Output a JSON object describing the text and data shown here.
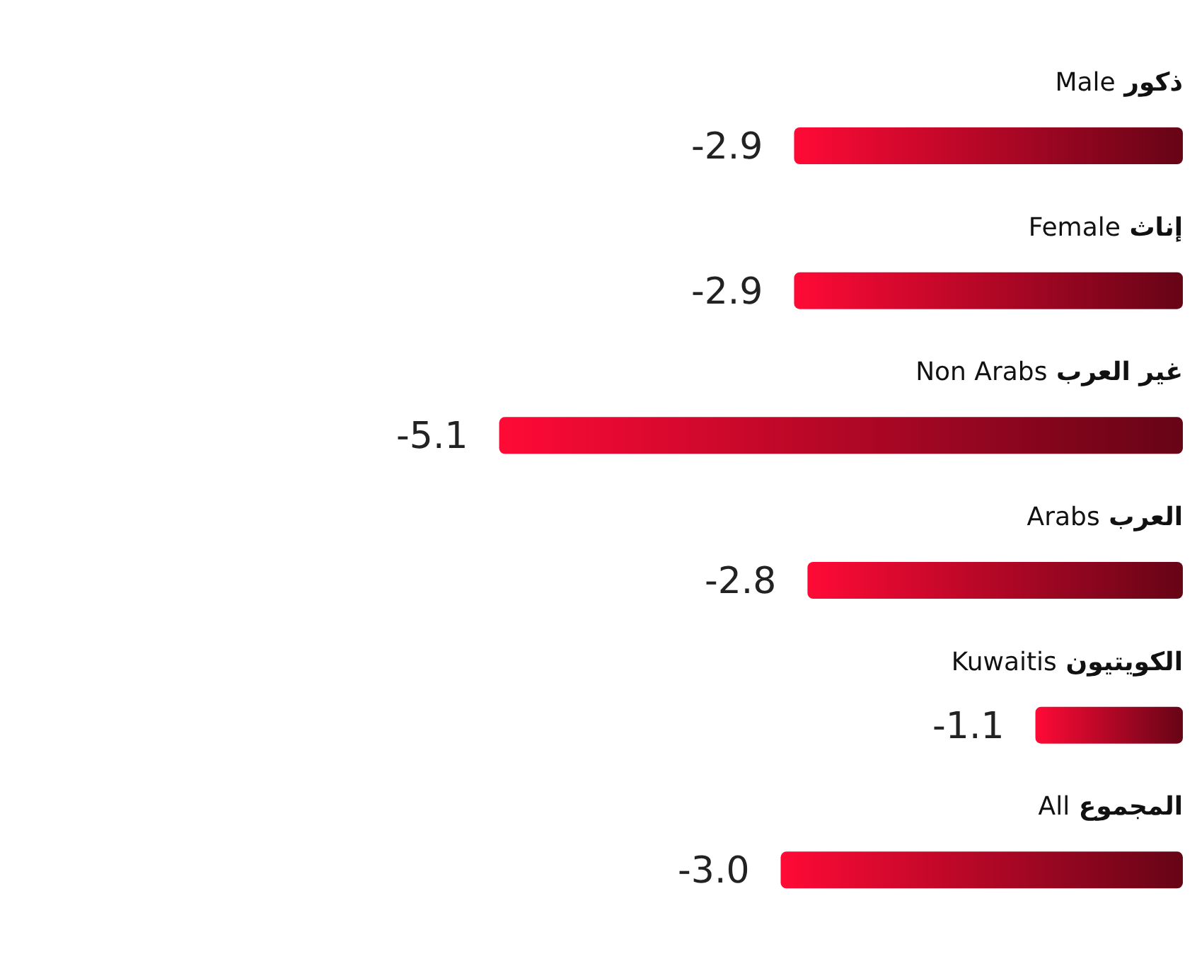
{
  "chart_data": {
    "type": "bar",
    "orientation": "horizontal",
    "categories": [
      "Male ذكور",
      "Female إناث",
      "Non Arabs غير العرب",
      "Arabs العرب",
      "Kuwaitis الكويتيون",
      "All المجموع"
    ],
    "values": [
      -2.9,
      -2.9,
      -5.1,
      -2.8,
      -1.1,
      -3.0
    ],
    "value_labels": [
      "-2.9",
      "-2.9",
      "-5.1",
      "-2.8",
      "-1.1",
      "-3.0"
    ],
    "color": "#ff0a36",
    "tick_labels": false,
    "grid": false,
    "legend": false
  }
}
